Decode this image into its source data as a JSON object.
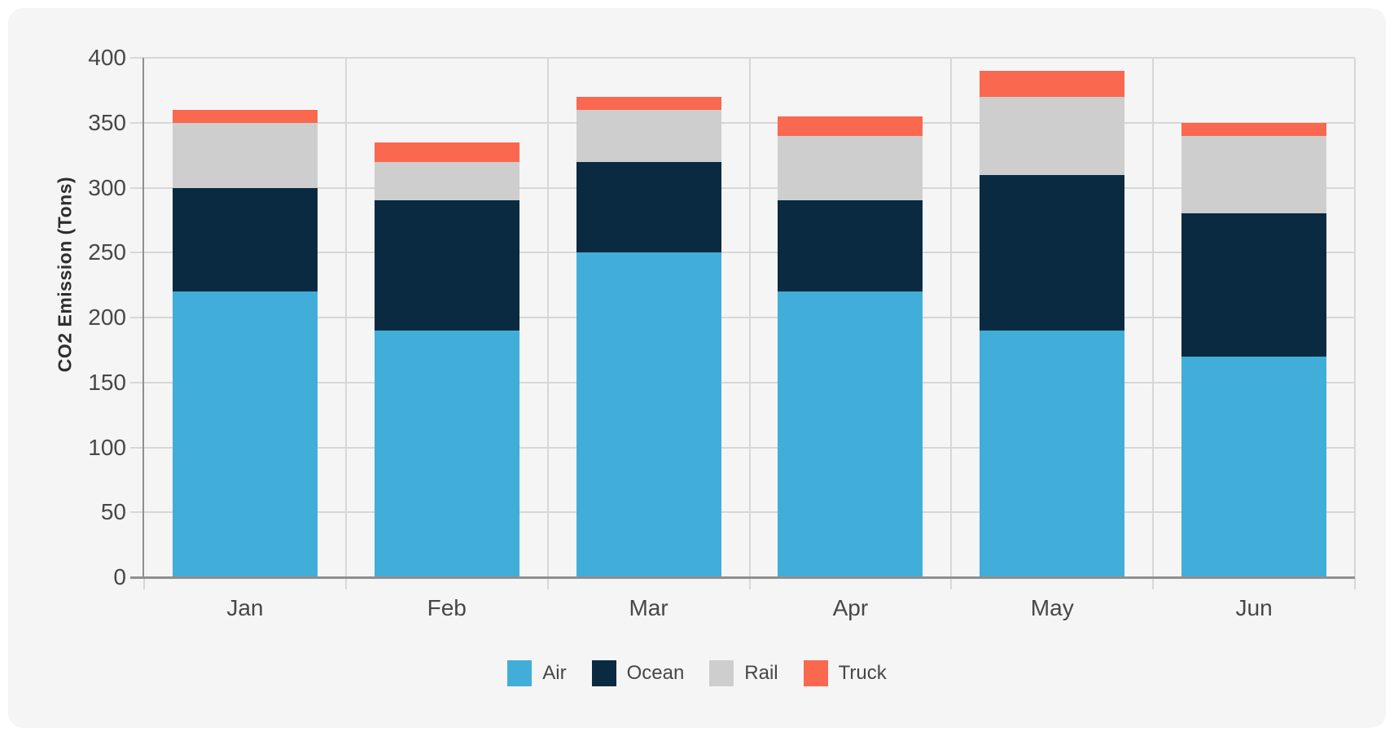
{
  "chart_data": {
    "type": "bar",
    "stacked": true,
    "title": "",
    "xlabel": "",
    "ylabel": "CO2 Emission (Tons)",
    "categories": [
      "Jan",
      "Feb",
      "Mar",
      "Apr",
      "May",
      "Jun"
    ],
    "series": [
      {
        "name": "Air",
        "color": "#41aed9",
        "values": [
          220,
          190,
          250,
          220,
          190,
          170
        ]
      },
      {
        "name": "Ocean",
        "color": "#0a2a42",
        "values": [
          80,
          100,
          70,
          70,
          120,
          110
        ]
      },
      {
        "name": "Rail",
        "color": "#cecece",
        "values": [
          50,
          30,
          40,
          50,
          60,
          60
        ]
      },
      {
        "name": "Truck",
        "color": "#f9684f",
        "values": [
          10,
          15,
          10,
          15,
          20,
          10
        ]
      }
    ],
    "stack_totals": [
      360,
      335,
      370,
      355,
      390,
      350
    ],
    "ylim": [
      0,
      400
    ],
    "yticks": [
      0,
      50,
      100,
      150,
      200,
      250,
      300,
      350,
      400
    ],
    "grid": true,
    "legend_position": "bottom"
  },
  "colors": {
    "page_bg": "#ffffff",
    "panel_bg": "#f5f5f5",
    "grid": "#d7d7d7",
    "axis": "#8f8f8f",
    "tick_text": "#474747",
    "title_text": "#2e2e2e"
  }
}
